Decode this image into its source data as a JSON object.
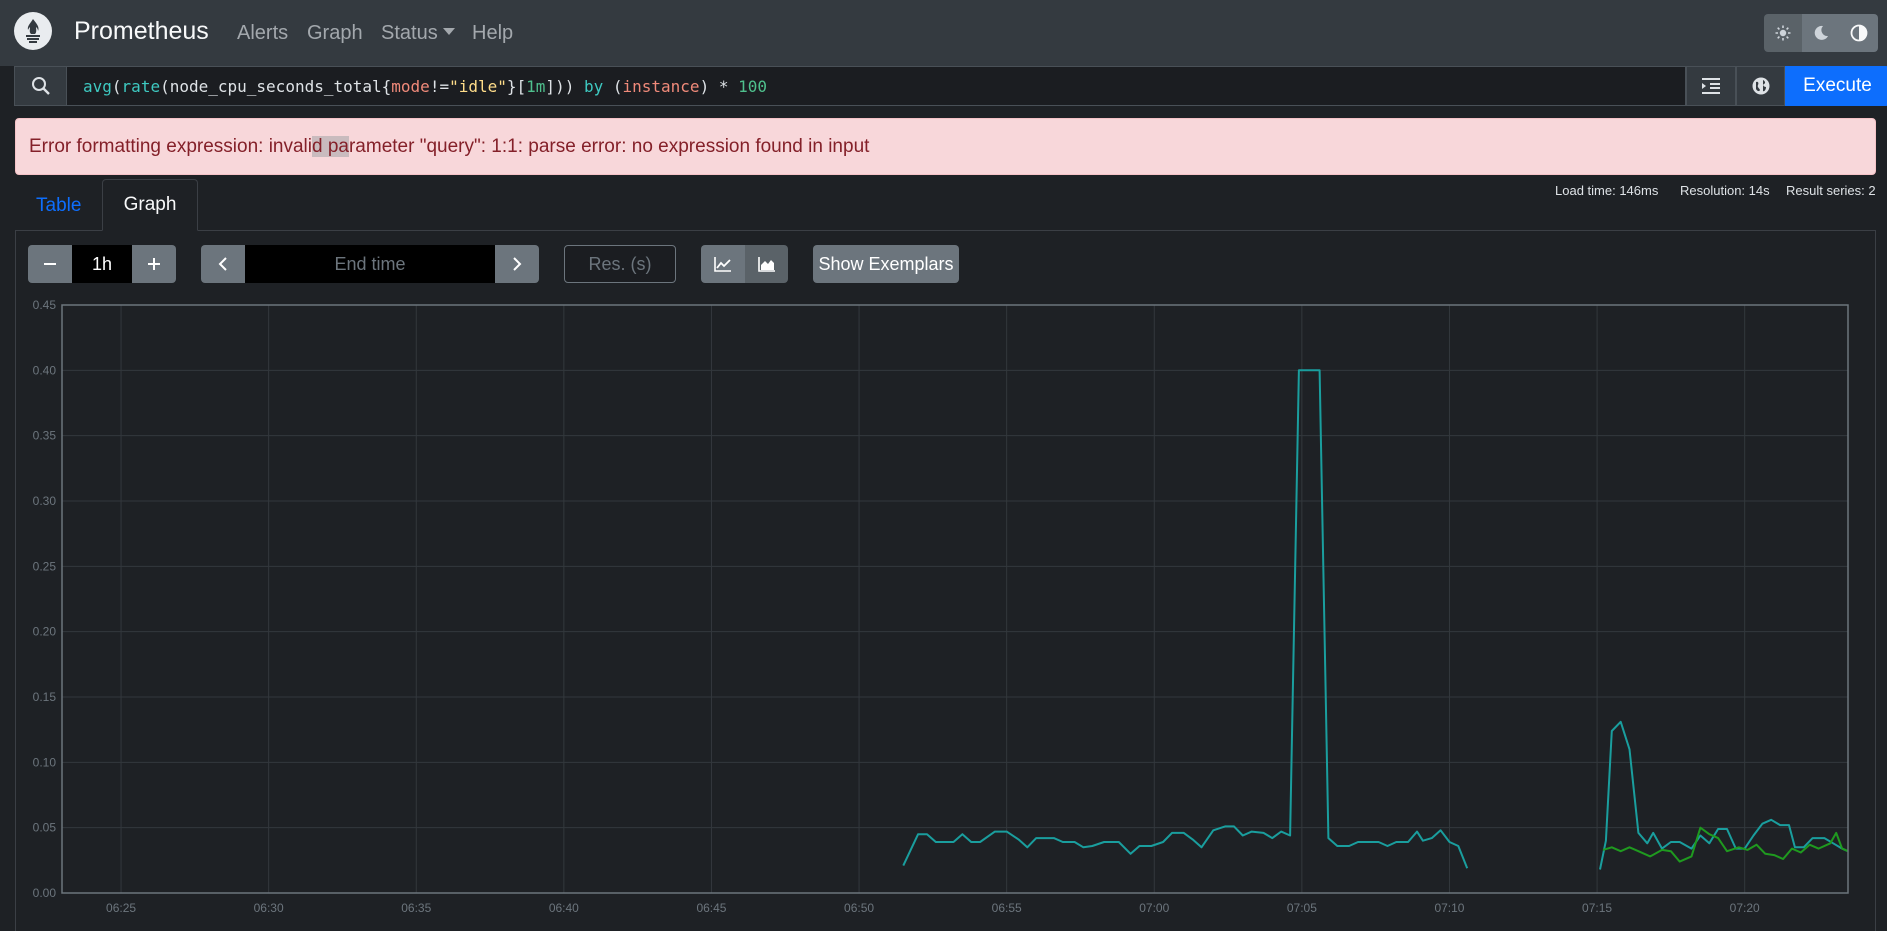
{
  "navbar": {
    "brand": "Prometheus",
    "links": [
      {
        "label": "Alerts"
      },
      {
        "label": "Graph"
      },
      {
        "label": "Status"
      },
      {
        "label": "Help"
      }
    ],
    "theme_buttons": [
      "sun-icon",
      "moon-icon",
      "contrast-icon"
    ]
  },
  "expression": {
    "tokens": [
      "avg",
      "(",
      "rate",
      "(",
      "node_cpu_seconds_total",
      "{",
      "mode",
      "!=",
      "\"idle\"",
      "}",
      "[",
      "1m",
      "]",
      "))",
      " by ",
      "(",
      "instance",
      ")",
      " * ",
      "100"
    ],
    "execute_label": "Execute"
  },
  "error": {
    "pre": "Error formatting expression: invali",
    "highlight": "d pa",
    "post": "rameter \"query\": 1:1: parse error: no expression found in input"
  },
  "tabs": {
    "table": "Table",
    "graph": "Graph"
  },
  "stats": {
    "load_time": "Load time: 146ms",
    "resolution": "Resolution: 14s",
    "result_series": "Result series: 2"
  },
  "controls": {
    "range_value": "1h",
    "end_time_placeholder": "End time",
    "resolution_placeholder": "Res. (s)",
    "show_exemplars": "Show Exemplars"
  },
  "colors": {
    "series_1": "#1a9e9e",
    "series_2": "#1f9a1f",
    "execute": "#0d6efd",
    "error_bg": "#f8d7da",
    "error_text": "#842029"
  },
  "chart_data": {
    "type": "line",
    "ylim": [
      0,
      0.45
    ],
    "yticks": [
      "0.00",
      "0.05",
      "0.10",
      "0.15",
      "0.20",
      "0.25",
      "0.30",
      "0.35",
      "0.40",
      "0.45"
    ],
    "xticks": [
      "06:25",
      "06:30",
      "06:35",
      "06:40",
      "06:45",
      "06:50",
      "06:55",
      "07:00",
      "07:05",
      "07:10",
      "07:15",
      "07:20"
    ],
    "xlim_minutes": [
      23,
      83.5
    ],
    "grid": true,
    "series": [
      {
        "points": [
          [
            51.5,
            0.021
          ],
          [
            52,
            0.045
          ],
          [
            52.3,
            0.045
          ],
          [
            52.6,
            0.039
          ],
          [
            53.2,
            0.039
          ],
          [
            53.5,
            0.045
          ],
          [
            53.8,
            0.039
          ],
          [
            54.1,
            0.039
          ],
          [
            54.6,
            0.047
          ],
          [
            55,
            0.047
          ],
          [
            55.4,
            0.041
          ],
          [
            55.7,
            0.035
          ],
          [
            56,
            0.042
          ],
          [
            56.6,
            0.042
          ],
          [
            56.9,
            0.039
          ],
          [
            57.3,
            0.039
          ],
          [
            57.6,
            0.035
          ],
          [
            57.9,
            0.036
          ],
          [
            58.3,
            0.039
          ],
          [
            58.8,
            0.039
          ],
          [
            59.2,
            0.03
          ],
          [
            59.5,
            0.036
          ],
          [
            59.9,
            0.036
          ],
          [
            60.3,
            0.039
          ],
          [
            60.6,
            0.046
          ],
          [
            61,
            0.046
          ],
          [
            61.3,
            0.041
          ],
          [
            61.6,
            0.035
          ],
          [
            62,
            0.048
          ],
          [
            62.4,
            0.051
          ],
          [
            62.7,
            0.051
          ],
          [
            63,
            0.044
          ],
          [
            63.3,
            0.047
          ],
          [
            63.7,
            0.046
          ],
          [
            64,
            0.042
          ],
          [
            64.3,
            0.047
          ],
          [
            64.6,
            0.044
          ],
          [
            64.9,
            0.4
          ],
          [
            65.3,
            0.4
          ],
          [
            65.6,
            0.4
          ],
          [
            65.9,
            0.042
          ],
          [
            66.2,
            0.036
          ],
          [
            66.6,
            0.036
          ],
          [
            66.9,
            0.039
          ],
          [
            67.3,
            0.039
          ],
          [
            67.6,
            0.039
          ],
          [
            67.9,
            0.036
          ],
          [
            68.2,
            0.039
          ],
          [
            68.6,
            0.039
          ],
          [
            68.9,
            0.047
          ],
          [
            69.1,
            0.04
          ],
          [
            69.4,
            0.042
          ],
          [
            69.7,
            0.048
          ],
          [
            70,
            0.039
          ],
          [
            70.3,
            0.036
          ],
          [
            70.6,
            0.019
          ]
        ]
      },
      {
        "points": [
          [
            75.1,
            0.018
          ],
          [
            75.3,
            0.04
          ],
          [
            75.5,
            0.124
          ],
          [
            75.8,
            0.131
          ],
          [
            76.1,
            0.11
          ],
          [
            76.4,
            0.046
          ],
          [
            76.7,
            0.038
          ],
          [
            76.9,
            0.046
          ],
          [
            77.2,
            0.034
          ],
          [
            77.5,
            0.039
          ],
          [
            77.8,
            0.039
          ],
          [
            78.2,
            0.034
          ],
          [
            78.5,
            0.044
          ],
          [
            78.8,
            0.038
          ],
          [
            79.1,
            0.049
          ],
          [
            79.4,
            0.049
          ],
          [
            79.7,
            0.034
          ],
          [
            80,
            0.034
          ],
          [
            80.3,
            0.044
          ],
          [
            80.6,
            0.053
          ],
          [
            80.9,
            0.056
          ],
          [
            81.2,
            0.052
          ],
          [
            81.5,
            0.052
          ],
          [
            81.7,
            0.035
          ],
          [
            82,
            0.035
          ],
          [
            82.3,
            0.042
          ],
          [
            82.7,
            0.042
          ],
          [
            83,
            0.038
          ],
          [
            83.3,
            0.034
          ],
          [
            83.5,
            0.032
          ]
        ]
      },
      {
        "points": [
          [
            75.2,
            0.033
          ],
          [
            75.5,
            0.035
          ],
          [
            75.8,
            0.032
          ],
          [
            76.1,
            0.035
          ],
          [
            76.4,
            0.032
          ],
          [
            76.8,
            0.028
          ],
          [
            77.2,
            0.033
          ],
          [
            77.5,
            0.032
          ],
          [
            77.8,
            0.024
          ],
          [
            78.2,
            0.028
          ],
          [
            78.5,
            0.05
          ],
          [
            78.8,
            0.045
          ],
          [
            79.1,
            0.042
          ],
          [
            79.4,
            0.032
          ],
          [
            79.8,
            0.035
          ],
          [
            80.1,
            0.033
          ],
          [
            80.4,
            0.037
          ],
          [
            80.7,
            0.03
          ],
          [
            81,
            0.029
          ],
          [
            81.3,
            0.026
          ],
          [
            81.6,
            0.034
          ],
          [
            81.9,
            0.031
          ],
          [
            82.2,
            0.037
          ],
          [
            82.5,
            0.034
          ],
          [
            82.9,
            0.038
          ],
          [
            83.1,
            0.046
          ],
          [
            83.3,
            0.034
          ],
          [
            83.5,
            0.032
          ]
        ]
      }
    ]
  }
}
